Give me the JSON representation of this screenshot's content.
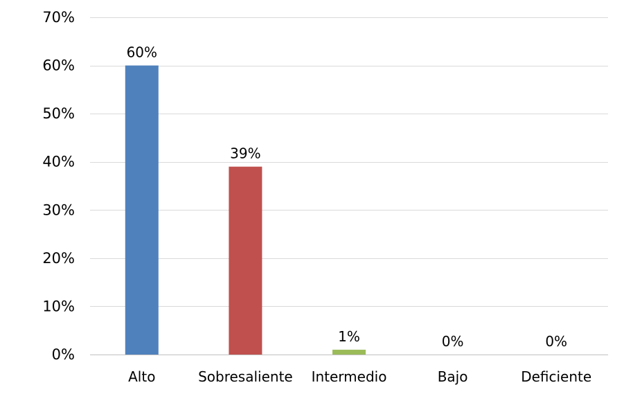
{
  "chart_data": {
    "type": "bar",
    "title": "",
    "xlabel": "",
    "ylabel": "",
    "categories": [
      "Alto",
      "Sobresaliente",
      "Intermedio",
      "Bajo",
      "Deficiente"
    ],
    "values": [
      60,
      39,
      1,
      0,
      0
    ],
    "data_labels": [
      "60%",
      "39%",
      "1%",
      "0%",
      "0%"
    ],
    "colors": [
      "#4f81bd",
      "#c0504d",
      "#9bbb59",
      "#8064a2",
      "#4bacc6"
    ],
    "ylim": [
      0,
      70
    ],
    "y_ticks": [
      0,
      10,
      20,
      30,
      40,
      50,
      60,
      70
    ],
    "y_tick_labels": [
      "0%",
      "10%",
      "20%",
      "30%",
      "40%",
      "50%",
      "60%",
      "70%"
    ],
    "grid": true,
    "legend": "none"
  }
}
